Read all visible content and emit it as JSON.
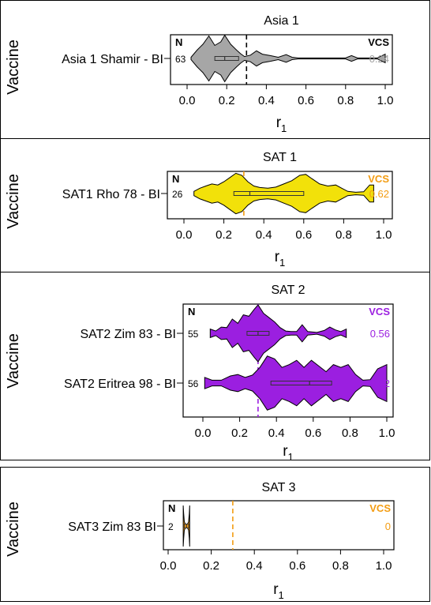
{
  "chart_data": [
    {
      "type": "violin",
      "title": "Asia 1",
      "xlabel": "r1",
      "ylabel": "Vaccine",
      "xlim": [
        0,
        1
      ],
      "xticks": [
        "0.0",
        "0.2",
        "0.4",
        "0.6",
        "0.8",
        "1.0"
      ],
      "threshold": 0.3,
      "threshold_color": "#000000",
      "n_header": "N",
      "vcs_header": "VCS",
      "vcs_color": "#a0a0a0",
      "rows": [
        {
          "label": "Asia 1 Shamir - BI",
          "n": "63",
          "vcs": "0.24",
          "fill": "#a6a6a6",
          "data_range": [
            0.02,
            1.0
          ],
          "box": {
            "q1": 0.14,
            "median": 0.19,
            "q3": 0.26
          },
          "density": [
            [
              0.02,
              0.05
            ],
            [
              0.05,
              0.35
            ],
            [
              0.08,
              0.6
            ],
            [
              0.11,
              0.95
            ],
            [
              0.14,
              0.55
            ],
            [
              0.17,
              0.7
            ],
            [
              0.19,
              0.98
            ],
            [
              0.22,
              0.6
            ],
            [
              0.25,
              0.35
            ],
            [
              0.27,
              0.2
            ],
            [
              0.29,
              0.08
            ],
            [
              0.32,
              0.14
            ],
            [
              0.35,
              0.32
            ],
            [
              0.38,
              0.18
            ],
            [
              0.42,
              0.12
            ],
            [
              0.46,
              0.05
            ],
            [
              0.5,
              0.16
            ],
            [
              0.53,
              0.05
            ],
            [
              0.56,
              0.02
            ],
            [
              0.7,
              0.02
            ],
            [
              0.8,
              0.02
            ],
            [
              0.83,
              0.12
            ],
            [
              0.86,
              0.02
            ],
            [
              0.96,
              0.02
            ],
            [
              1.0,
              0.18
            ]
          ]
        }
      ]
    },
    {
      "type": "violin",
      "title": "SAT 1",
      "xlabel": "r1",
      "ylabel": "Vaccine",
      "xlim": [
        0,
        1
      ],
      "xticks": [
        "0.0",
        "0.2",
        "0.4",
        "0.6",
        "0.8",
        "1.0"
      ],
      "threshold": 0.3,
      "threshold_color": "#f39c12",
      "n_header": "N",
      "vcs_header": "VCS",
      "vcs_color": "#f39c12",
      "rows": [
        {
          "label": "SAT1 Rho 78 - BI",
          "n": "26",
          "vcs": "0.62",
          "fill": "#f2e10a",
          "data_range": [
            0.05,
            0.95
          ],
          "box": {
            "q1": 0.25,
            "median": 0.33,
            "q3": 0.6
          },
          "density": [
            [
              0.05,
              0.1
            ],
            [
              0.08,
              0.25
            ],
            [
              0.11,
              0.35
            ],
            [
              0.14,
              0.45
            ],
            [
              0.17,
              0.4
            ],
            [
              0.2,
              0.55
            ],
            [
              0.23,
              0.75
            ],
            [
              0.26,
              0.95
            ],
            [
              0.29,
              0.85
            ],
            [
              0.32,
              0.55
            ],
            [
              0.35,
              0.35
            ],
            [
              0.38,
              0.28
            ],
            [
              0.42,
              0.25
            ],
            [
              0.46,
              0.3
            ],
            [
              0.5,
              0.45
            ],
            [
              0.54,
              0.6
            ],
            [
              0.58,
              0.85
            ],
            [
              0.61,
              0.9
            ],
            [
              0.64,
              0.7
            ],
            [
              0.68,
              0.45
            ],
            [
              0.72,
              0.35
            ],
            [
              0.76,
              0.4
            ],
            [
              0.79,
              0.25
            ],
            [
              0.82,
              0.1
            ],
            [
              0.86,
              0.06
            ],
            [
              0.9,
              0.08
            ],
            [
              0.93,
              0.4
            ],
            [
              0.95,
              0.4
            ]
          ]
        }
      ]
    },
    {
      "type": "violin",
      "title": "SAT 2",
      "xlabel": "r1",
      "ylabel": "Vaccine",
      "xlim": [
        0,
        1
      ],
      "xticks": [
        "0.0",
        "0.2",
        "0.4",
        "0.6",
        "0.8",
        "1.0"
      ],
      "threshold": 0.3,
      "threshold_color": "#9b1fe0",
      "n_header": "N",
      "vcs_header": "VCS",
      "vcs_color": "#9b1fe0",
      "rows": [
        {
          "label": "SAT2 Zim 83 - BI",
          "n": "55",
          "vcs": "0.56",
          "fill": "#9b1fe0",
          "data_range": [
            0.04,
            0.78
          ],
          "box": {
            "q1": 0.24,
            "median": 0.3,
            "q3": 0.36
          },
          "density": [
            [
              0.04,
              0.15
            ],
            [
              0.07,
              0.08
            ],
            [
              0.1,
              0.22
            ],
            [
              0.13,
              0.2
            ],
            [
              0.16,
              0.5
            ],
            [
              0.19,
              0.35
            ],
            [
              0.22,
              0.65
            ],
            [
              0.25,
              0.6
            ],
            [
              0.28,
              0.85
            ],
            [
              0.3,
              1.0
            ],
            [
              0.33,
              0.7
            ],
            [
              0.36,
              0.55
            ],
            [
              0.39,
              0.4
            ],
            [
              0.42,
              0.2
            ],
            [
              0.45,
              0.08
            ],
            [
              0.48,
              0.06
            ],
            [
              0.51,
              0.06
            ],
            [
              0.54,
              0.3
            ],
            [
              0.57,
              0.06
            ],
            [
              0.62,
              0.03
            ],
            [
              0.66,
              0.1
            ],
            [
              0.69,
              0.22
            ],
            [
              0.72,
              0.12
            ],
            [
              0.75,
              0.06
            ],
            [
              0.78,
              0.15
            ]
          ]
        },
        {
          "label": "SAT2 Eritrea 98 - BI",
          "n": "56",
          "vcs": "0.82",
          "fill": "#9b1fe0",
          "data_range": [
            0.01,
            1.0
          ],
          "box": {
            "q1": 0.37,
            "median": 0.58,
            "q3": 0.7
          },
          "density": [
            [
              0.01,
              0.2
            ],
            [
              0.05,
              0.1
            ],
            [
              0.1,
              0.1
            ],
            [
              0.15,
              0.25
            ],
            [
              0.19,
              0.3
            ],
            [
              0.23,
              0.2
            ],
            [
              0.27,
              0.28
            ],
            [
              0.31,
              0.55
            ],
            [
              0.35,
              0.95
            ],
            [
              0.39,
              0.85
            ],
            [
              0.43,
              0.55
            ],
            [
              0.47,
              0.65
            ],
            [
              0.51,
              0.8
            ],
            [
              0.55,
              0.55
            ],
            [
              0.59,
              0.8
            ],
            [
              0.63,
              0.6
            ],
            [
              0.67,
              0.4
            ],
            [
              0.71,
              0.65
            ],
            [
              0.75,
              0.55
            ],
            [
              0.79,
              0.65
            ],
            [
              0.83,
              0.3
            ],
            [
              0.87,
              0.1
            ],
            [
              0.91,
              0.12
            ],
            [
              0.95,
              0.5
            ],
            [
              1.0,
              0.65
            ]
          ]
        }
      ]
    },
    {
      "type": "violin",
      "title": "SAT 3",
      "xlabel": "r1",
      "ylabel": "Vaccine",
      "xlim": [
        0,
        1
      ],
      "xticks": [
        "0.0",
        "0.2",
        "0.4",
        "0.6",
        "0.8",
        "1.0"
      ],
      "threshold": 0.3,
      "threshold_color": "#f39c12",
      "n_header": "N",
      "vcs_header": "VCS",
      "vcs_color": "#f39c12",
      "rows": [
        {
          "label": "SAT3 Zim 83 BI",
          "n": "2",
          "vcs": "0",
          "fill": "#f39c12",
          "data_range": [
            0.07,
            0.1
          ],
          "box": {
            "q1": 0.075,
            "median": 0.085,
            "q3": 0.095
          },
          "density": [
            [
              0.07,
              1.0
            ],
            [
              0.072,
              0.6
            ],
            [
              0.075,
              0.2
            ],
            [
              0.08,
              0.1
            ],
            [
              0.085,
              0.08
            ],
            [
              0.09,
              0.1
            ],
            [
              0.095,
              0.2
            ],
            [
              0.098,
              0.6
            ],
            [
              0.1,
              1.0
            ]
          ]
        }
      ]
    }
  ]
}
